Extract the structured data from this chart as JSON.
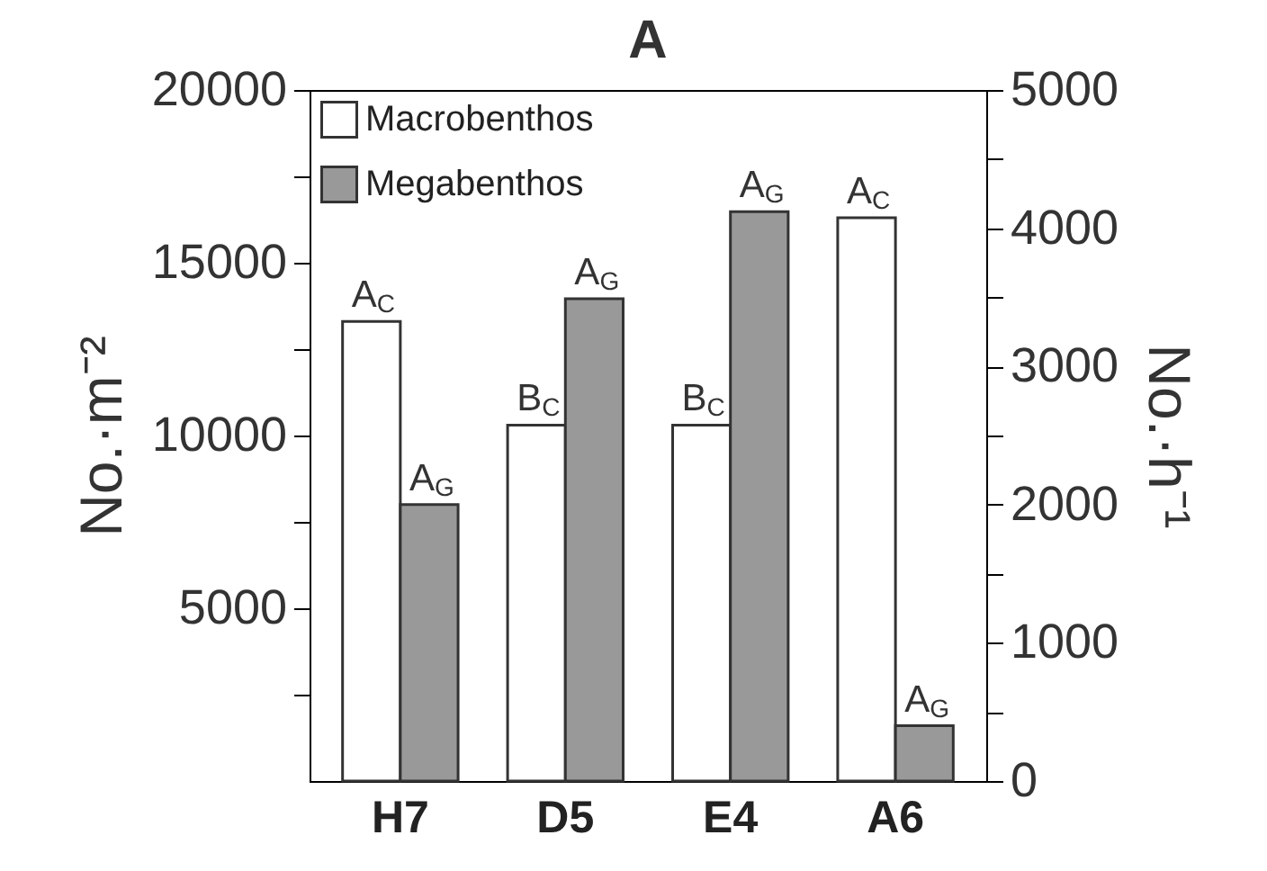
{
  "chart_data": {
    "type": "bar",
    "title": "A",
    "ylabel": "No.·m⁻²",
    "y2label": "No.·h⁻¹",
    "categories": [
      "H7",
      "D5",
      "E4",
      "A6"
    ],
    "series": [
      {
        "name": "Macrobenthos",
        "color": "#ffffff",
        "values": [
          13300,
          10300,
          10300,
          16300
        ],
        "value_labels": [
          "A$_{C}$",
          "B$_{C}$",
          "B$_{C}$",
          "A$_{C}$"
        ]
      },
      {
        "name": "Megabenthos",
        "color": "#999999",
        "axis": "y2",
        "values": [
          2000,
          3490,
          4120,
          400
        ],
        "value_labels": [
          "A$_{G}$",
          "A$_{G}$",
          "A$_{G}$",
          "A$_{G}$"
        ]
      }
    ],
    "ylim": [
      0,
      20000
    ],
    "yticks": [
      {
        "value": 2500,
        "label": null
      },
      5000,
      {
        "value": 7500,
        "label": null
      },
      10000,
      {
        "value": 12500,
        "label": null
      },
      15000,
      {
        "value": 17500,
        "label": null
      },
      20000
    ],
    "y2lim": [
      0,
      5000
    ],
    "y2ticks": [
      0,
      {
        "value": 500,
        "label": null
      },
      1000,
      {
        "value": 1500,
        "label": null
      },
      2000,
      {
        "value": 2500,
        "label": null
      },
      3000,
      {
        "value": 3500,
        "label": null
      },
      4000,
      {
        "value": 4500,
        "label": null
      },
      5000
    ],
    "legend": "top left",
    "grid": false
  }
}
